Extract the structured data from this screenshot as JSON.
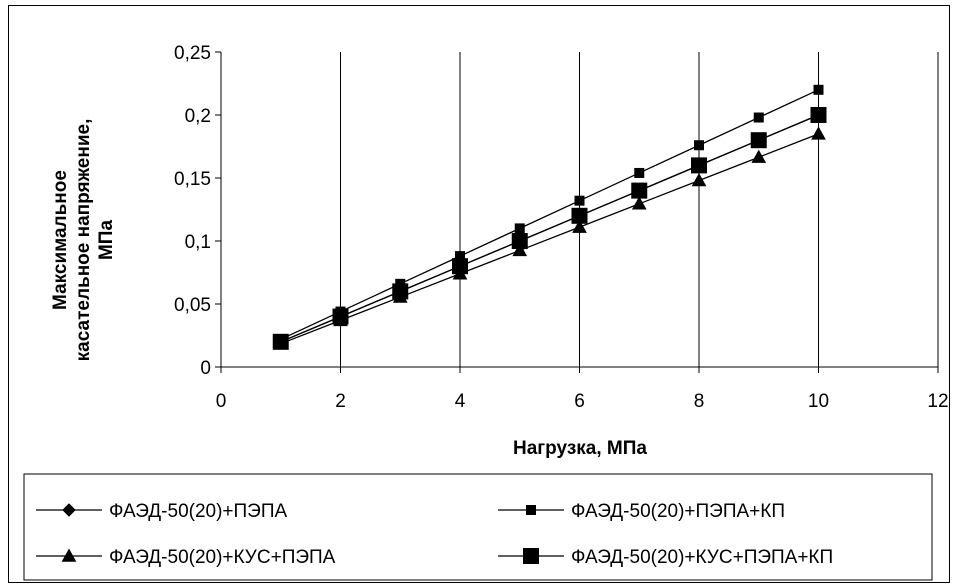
{
  "chart_data": {
    "type": "line",
    "title": "",
    "xlabel": "Нагрузка, МПа",
    "ylabel_lines": [
      "Максимальное",
      "касательное напряжение,",
      "МПа"
    ],
    "xlim": [
      0,
      12
    ],
    "ylim": [
      0,
      0.25
    ],
    "x_ticks": [
      0,
      2,
      4,
      6,
      8,
      10,
      12
    ],
    "x_tick_labels": [
      "0",
      "2",
      "4",
      "6",
      "8",
      "10",
      "12"
    ],
    "y_ticks": [
      0,
      0.05,
      0.1,
      0.15,
      0.2,
      0.25
    ],
    "y_tick_labels": [
      "0",
      "0,05",
      "0,1",
      "0,15",
      "0,2",
      "0,25"
    ],
    "grid": "vertical",
    "legend_position": "bottom",
    "x": [
      1,
      2,
      3,
      4,
      5,
      6,
      7,
      8,
      9,
      10
    ],
    "series": [
      {
        "name": "ФАЭД-50(20)+ПЭПА",
        "marker": "diamond",
        "values": [
          0.02,
          0.04,
          0.06,
          0.08,
          0.1,
          0.12,
          0.14,
          0.16,
          0.18,
          0.2
        ]
      },
      {
        "name": "ФАЭД-50(20)+ПЭПА+КП",
        "marker": "square-small",
        "values": [
          0.022,
          0.044,
          0.066,
          0.088,
          0.11,
          0.132,
          0.154,
          0.176,
          0.198,
          0.22
        ]
      },
      {
        "name": "ФАЭД-50(20)+КУС+ПЭПА",
        "marker": "triangle",
        "values": [
          0.0185,
          0.037,
          0.0555,
          0.074,
          0.0925,
          0.111,
          0.1295,
          0.148,
          0.1665,
          0.185
        ]
      },
      {
        "name": "ФАЭД-50(20)+КУС+ПЭПА+КП",
        "marker": "square-large",
        "values": [
          0.02,
          0.04,
          0.06,
          0.08,
          0.1,
          0.12,
          0.14,
          0.16,
          0.18,
          0.2
        ]
      }
    ],
    "colors": {
      "line": "#000000",
      "grid": "#000000",
      "background": "#ffffff"
    }
  }
}
